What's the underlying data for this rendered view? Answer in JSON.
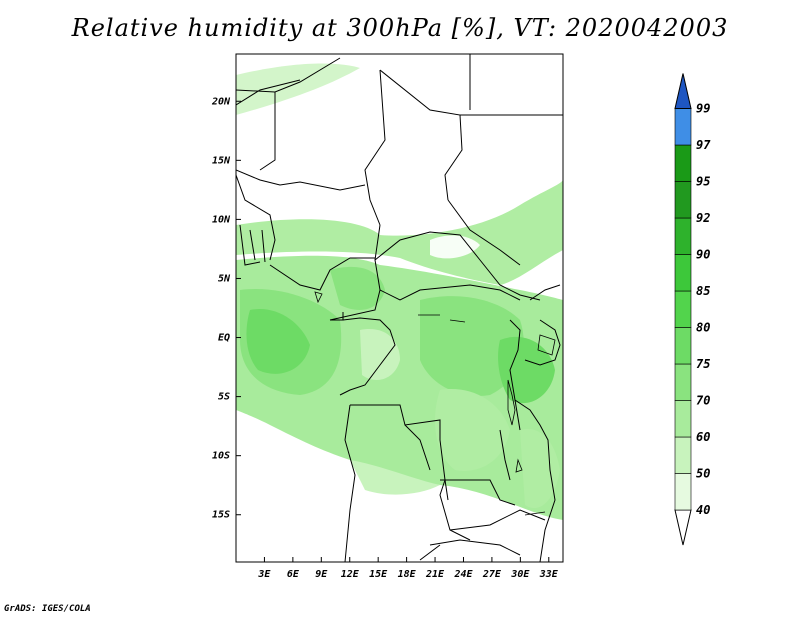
{
  "title": "Relative humidity at 300hPa [%], VT: 2020042003",
  "credit": "GrADS: IGES/COLA",
  "axes": {
    "lat_labels": [
      "20N",
      "15N",
      "10N",
      "5N",
      "EQ",
      "5S",
      "10S",
      "15S"
    ],
    "lon_labels": [
      "3E",
      "6E",
      "9E",
      "12E",
      "15E",
      "18E",
      "21E",
      "24E",
      "27E",
      "30E",
      "33E"
    ]
  },
  "colorbar": {
    "labels": [
      "40",
      "50",
      "60",
      "70",
      "75",
      "80",
      "85",
      "90",
      "92",
      "95",
      "97",
      "99"
    ],
    "colors": [
      "#ffffff",
      "#e6fae0",
      "#c8f3bd",
      "#a8eb9c",
      "#8ae37f",
      "#6ddb65",
      "#52d44c",
      "#3dc83a",
      "#2eb22c",
      "#21991f",
      "#1a9a17",
      "#3f8ee6",
      "#2a6fd6",
      "#1e56c2"
    ]
  },
  "map": {
    "lat_range": [
      -19,
      24
    ],
    "lon_range": [
      0,
      34.5
    ],
    "moist_color": "#8ae37f"
  }
}
